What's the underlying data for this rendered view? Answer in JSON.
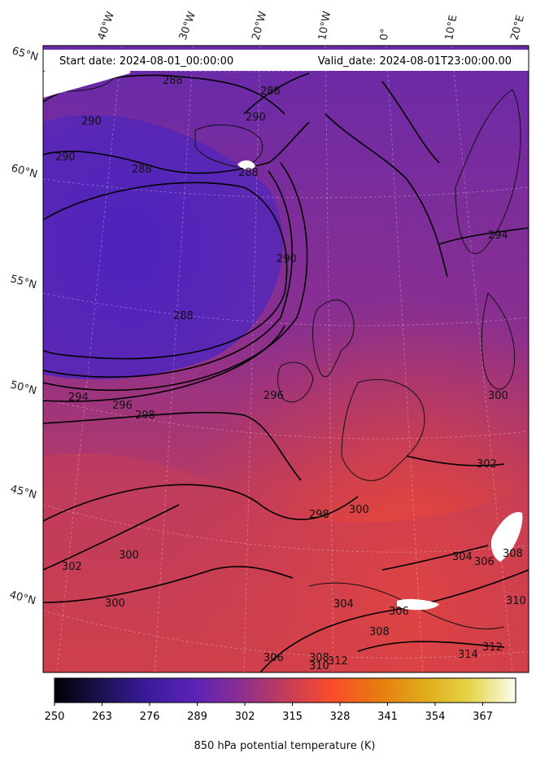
{
  "header": {
    "start_date": "Start date: 2024-08-01_00:00:00",
    "valid_date": "Valid_date: 2024-08-01T23:00:00.00"
  },
  "graticule": {
    "longitudes": [
      "40°W",
      "30°W",
      "20°W",
      "10°W",
      "0°",
      "10°E",
      "20°E"
    ],
    "latitudes": [
      "65°N",
      "60°N",
      "55°N",
      "50°N",
      "45°N",
      "40°N"
    ]
  },
  "contour_labels": [
    "288",
    "288",
    "288",
    "288",
    "288",
    "290",
    "290",
    "290",
    "290",
    "294",
    "294",
    "296",
    "296",
    "298",
    "298",
    "300",
    "300",
    "300",
    "300",
    "302",
    "302",
    "304",
    "304",
    "306",
    "306",
    "306",
    "308",
    "308",
    "308",
    "310",
    "310",
    "312",
    "312",
    "314"
  ],
  "colorbar": {
    "label": "850 hPa potential temperature (K)",
    "min": 250,
    "max": 376,
    "ticks": [
      "250",
      "263",
      "276",
      "289",
      "302",
      "315",
      "328",
      "341",
      "354",
      "367"
    ],
    "colormap": "plasma-like",
    "stops": [
      "#000004",
      "#1c1150",
      "#3a1a9a",
      "#5a22b8",
      "#8a2e92",
      "#c23c5a",
      "#fb4b2c",
      "#e77a10",
      "#e0aa18",
      "#e4d448",
      "#fcfdf0"
    ]
  },
  "colors": {
    "cold_region": "#5526ba",
    "mid_region": "#8a308f",
    "warm_region": "#f2472f",
    "contour": "#000000"
  }
}
